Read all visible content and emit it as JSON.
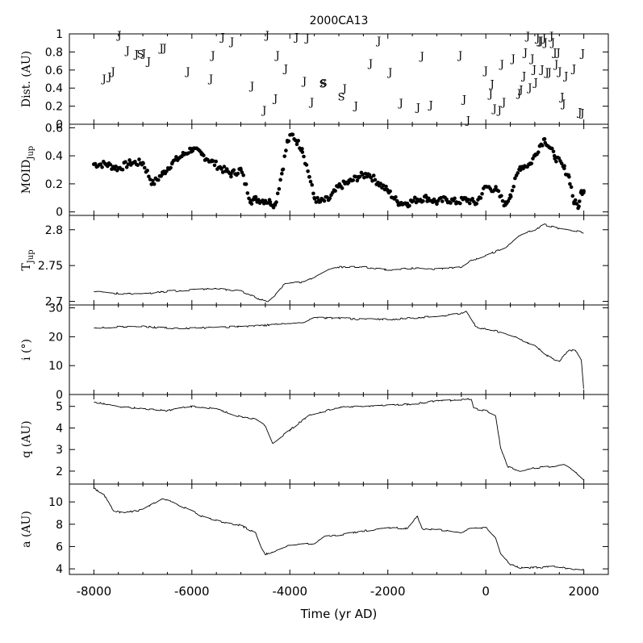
{
  "chart_data": {
    "type": "multi-panel",
    "title": "2000CA13",
    "xlabel": "Time (yr AD)",
    "xlim": [
      -8500,
      2500
    ],
    "x_ticks": [
      -8000,
      -6000,
      -4000,
      -2000,
      0,
      2000
    ],
    "x_tick_labels": [
      "-8000",
      "-6000",
      "-4000",
      "-2000",
      "0",
      "2000"
    ],
    "panels": [
      {
        "id": "dist",
        "type": "scatter",
        "ylabel_main": "Dist. (AU)",
        "ylabel_sub": "",
        "ylim": [
          0,
          1
        ],
        "y_ticks": [
          "0",
          "0.2",
          "0.4",
          "0.6",
          "0.8",
          "1"
        ],
        "marker_legend": {
          "J": "Jupiter encounter",
          "S": "Saturn encounter"
        },
        "points": [
          {
            "x": -7790,
            "y": 0.51,
            "m": "J"
          },
          {
            "x": -7680,
            "y": 0.53,
            "m": "J"
          },
          {
            "x": -7610,
            "y": 0.59,
            "m": "J"
          },
          {
            "x": -7480,
            "y": 0.99,
            "m": "J"
          },
          {
            "x": -7310,
            "y": 0.82,
            "m": "J"
          },
          {
            "x": -7130,
            "y": 0.78,
            "m": "J"
          },
          {
            "x": -7050,
            "y": 0.78,
            "m": "S"
          },
          {
            "x": -6980,
            "y": 0.79,
            "m": "J"
          },
          {
            "x": -6880,
            "y": 0.7,
            "m": "J"
          },
          {
            "x": -6620,
            "y": 0.85,
            "m": "J"
          },
          {
            "x": -6560,
            "y": 0.85,
            "m": "J"
          },
          {
            "x": -6080,
            "y": 0.59,
            "m": "J"
          },
          {
            "x": -5610,
            "y": 0.51,
            "m": "J"
          },
          {
            "x": -5570,
            "y": 0.77,
            "m": "J"
          },
          {
            "x": -5370,
            "y": 0.97,
            "m": "J"
          },
          {
            "x": -5180,
            "y": 0.92,
            "m": "J"
          },
          {
            "x": -4770,
            "y": 0.43,
            "m": "J"
          },
          {
            "x": -4520,
            "y": 0.16,
            "m": "J"
          },
          {
            "x": -4460,
            "y": 0.99,
            "m": "J"
          },
          {
            "x": -4290,
            "y": 0.29,
            "m": "J"
          },
          {
            "x": -4250,
            "y": 0.77,
            "m": "J"
          },
          {
            "x": -4080,
            "y": 0.62,
            "m": "J"
          },
          {
            "x": -3860,
            "y": 0.97,
            "m": "J"
          },
          {
            "x": -3700,
            "y": 0.48,
            "m": "J"
          },
          {
            "x": -3640,
            "y": 0.96,
            "m": "J"
          },
          {
            "x": -3550,
            "y": 0.25,
            "m": "J"
          },
          {
            "x": -3330,
            "y": 0.45,
            "m": "S"
          },
          {
            "x": -3310,
            "y": 0.46,
            "m": "S"
          },
          {
            "x": -2950,
            "y": 0.31,
            "m": "S"
          },
          {
            "x": -2880,
            "y": 0.4,
            "m": "J"
          },
          {
            "x": -2650,
            "y": 0.21,
            "m": "J"
          },
          {
            "x": -2350,
            "y": 0.68,
            "m": "J"
          },
          {
            "x": -2180,
            "y": 0.93,
            "m": "J"
          },
          {
            "x": -1950,
            "y": 0.58,
            "m": "J"
          },
          {
            "x": -1730,
            "y": 0.24,
            "m": "J"
          },
          {
            "x": -1380,
            "y": 0.19,
            "m": "J"
          },
          {
            "x": -1300,
            "y": 0.76,
            "m": "J"
          },
          {
            "x": -1120,
            "y": 0.22,
            "m": "J"
          },
          {
            "x": -520,
            "y": 0.77,
            "m": "J"
          },
          {
            "x": -440,
            "y": 0.28,
            "m": "J"
          },
          {
            "x": -360,
            "y": 0.05,
            "m": "J"
          },
          {
            "x": 0,
            "y": 0.6,
            "m": "J"
          },
          {
            "x": 100,
            "y": 0.34,
            "m": "J"
          },
          {
            "x": 130,
            "y": 0.45,
            "m": "J"
          },
          {
            "x": 180,
            "y": 0.18,
            "m": "J"
          },
          {
            "x": 280,
            "y": 0.16,
            "m": "J"
          },
          {
            "x": 330,
            "y": 0.67,
            "m": "J"
          },
          {
            "x": 370,
            "y": 0.25,
            "m": "J"
          },
          {
            "x": 560,
            "y": 0.73,
            "m": "J"
          },
          {
            "x": 680,
            "y": 0.35,
            "m": "J"
          },
          {
            "x": 720,
            "y": 0.39,
            "m": "J"
          },
          {
            "x": 780,
            "y": 0.54,
            "m": "J"
          },
          {
            "x": 810,
            "y": 0.8,
            "m": "J"
          },
          {
            "x": 860,
            "y": 0.98,
            "m": "J"
          },
          {
            "x": 900,
            "y": 0.41,
            "m": "J"
          },
          {
            "x": 950,
            "y": 0.73,
            "m": "J"
          },
          {
            "x": 990,
            "y": 0.61,
            "m": "J"
          },
          {
            "x": 1020,
            "y": 0.47,
            "m": "J"
          },
          {
            "x": 1060,
            "y": 0.96,
            "m": "J"
          },
          {
            "x": 1100,
            "y": 0.93,
            "m": "J"
          },
          {
            "x": 1130,
            "y": 0.93,
            "m": "J"
          },
          {
            "x": 1150,
            "y": 0.61,
            "m": "J"
          },
          {
            "x": 1190,
            "y": 0.96,
            "m": "J"
          },
          {
            "x": 1220,
            "y": 0.91,
            "m": "J"
          },
          {
            "x": 1250,
            "y": 0.58,
            "m": "J"
          },
          {
            "x": 1300,
            "y": 0.58,
            "m": "J"
          },
          {
            "x": 1340,
            "y": 0.98,
            "m": "J"
          },
          {
            "x": 1370,
            "y": 0.91,
            "m": "J"
          },
          {
            "x": 1410,
            "y": 0.8,
            "m": "J"
          },
          {
            "x": 1440,
            "y": 0.67,
            "m": "J"
          },
          {
            "x": 1480,
            "y": 0.8,
            "m": "J"
          },
          {
            "x": 1510,
            "y": 0.59,
            "m": "J"
          },
          {
            "x": 1560,
            "y": 0.31,
            "m": "J"
          },
          {
            "x": 1590,
            "y": 0.23,
            "m": "J"
          },
          {
            "x": 1640,
            "y": 0.54,
            "m": "J"
          },
          {
            "x": 1800,
            "y": 0.62,
            "m": "J"
          },
          {
            "x": 1920,
            "y": 0.14,
            "m": "J"
          },
          {
            "x": 1970,
            "y": 0.13,
            "m": "J"
          },
          {
            "x": 1980,
            "y": 0.79,
            "m": "J"
          }
        ]
      },
      {
        "id": "moid",
        "type": "scatter",
        "ylabel_main": "MOID",
        "ylabel_sub": "Jup",
        "ylim": [
          -0.025,
          0.625
        ],
        "y_ticks": [
          "0",
          "0.2",
          "0.4",
          "0.6"
        ],
        "x": [
          -8000,
          -7750,
          -7500,
          -7250,
          -7000,
          -6800,
          -6600,
          -6400,
          -6200,
          -6000,
          -5800,
          -5600,
          -5400,
          -5200,
          -5000,
          -4800,
          -4700,
          -4500,
          -4400,
          -4300,
          -4150,
          -4050,
          -3950,
          -3850,
          -3750,
          -3600,
          -3500,
          -3400,
          -3200,
          -3000,
          -2800,
          -2600,
          -2400,
          -2200,
          -2000,
          -1800,
          -1600,
          -1400,
          -1200,
          -1000,
          -800,
          -600,
          -400,
          -200,
          0,
          200,
          400,
          500,
          700,
          900,
          1000,
          1100,
          1200,
          1300,
          1400,
          1600,
          1700,
          1800,
          1900,
          1950,
          2000
        ],
        "values": [
          0.34,
          0.34,
          0.31,
          0.35,
          0.35,
          0.2,
          0.27,
          0.35,
          0.4,
          0.45,
          0.41,
          0.36,
          0.31,
          0.27,
          0.3,
          0.08,
          0.09,
          0.08,
          0.07,
          0.05,
          0.3,
          0.5,
          0.55,
          0.5,
          0.45,
          0.25,
          0.1,
          0.07,
          0.09,
          0.18,
          0.21,
          0.25,
          0.27,
          0.21,
          0.15,
          0.07,
          0.06,
          0.09,
          0.1,
          0.07,
          0.09,
          0.07,
          0.09,
          0.06,
          0.18,
          0.16,
          0.05,
          0.12,
          0.32,
          0.34,
          0.4,
          0.47,
          0.52,
          0.46,
          0.4,
          0.31,
          0.25,
          0.07,
          0.04,
          0.15,
          0.15
        ]
      },
      {
        "id": "tjup",
        "type": "line",
        "ylabel_main": "T",
        "ylabel_sub": "Jup",
        "ylim": [
          2.695,
          2.82
        ],
        "y_ticks": [
          "2.7",
          "2.75",
          "2.8"
        ],
        "x": [
          -8000,
          -7500,
          -7000,
          -6500,
          -6000,
          -5500,
          -5000,
          -4600,
          -4450,
          -4300,
          -4100,
          -3700,
          -3200,
          -3000,
          -2500,
          -2000,
          -1500,
          -1000,
          -500,
          -300,
          0,
          400,
          700,
          1000,
          1200,
          1500,
          2000
        ],
        "values": [
          2.714,
          2.711,
          2.71,
          2.714,
          2.716,
          2.718,
          2.714,
          2.703,
          2.7,
          2.709,
          2.725,
          2.727,
          2.745,
          2.748,
          2.748,
          2.744,
          2.746,
          2.745,
          2.748,
          2.757,
          2.764,
          2.775,
          2.792,
          2.8,
          2.807,
          2.802,
          2.796
        ]
      },
      {
        "id": "incl",
        "type": "line",
        "ylabel_main": "i (°)",
        "ylabel_sub": "",
        "ylim": [
          0,
          31
        ],
        "y_ticks": [
          "0",
          "10",
          "20",
          "30"
        ],
        "x": [
          -8000,
          -7500,
          -7000,
          -6500,
          -6000,
          -5500,
          -5000,
          -4500,
          -4000,
          -3700,
          -3500,
          -3000,
          -2500,
          -2000,
          -1500,
          -1000,
          -500,
          -400,
          -200,
          0,
          200,
          400,
          600,
          800,
          1000,
          1200,
          1400,
          1500,
          1700,
          1850,
          1950,
          2000
        ],
        "values": [
          23,
          23.5,
          23.5,
          23,
          23,
          23.3,
          23.5,
          24,
          24.5,
          25,
          26.5,
          26.5,
          26,
          26,
          26.5,
          27,
          28,
          29,
          23.5,
          22.5,
          22,
          21,
          20,
          18,
          17,
          14,
          12,
          11.5,
          15.5,
          15,
          12,
          1
        ]
      },
      {
        "id": "q",
        "type": "line",
        "ylabel_main": "q (AU)",
        "ylabel_sub": "",
        "ylim": [
          1.4,
          5.55
        ],
        "y_ticks": [
          "2",
          "3",
          "4",
          "5"
        ],
        "x": [
          -8000,
          -7500,
          -7000,
          -6500,
          -6000,
          -5500,
          -5000,
          -4700,
          -4500,
          -4350,
          -4000,
          -3600,
          -3000,
          -2500,
          -2000,
          -1500,
          -1000,
          -500,
          -300,
          -250,
          0,
          200,
          300,
          450,
          700,
          1000,
          1300,
          1600,
          1800,
          1950,
          2000
        ],
        "values": [
          5.2,
          5.0,
          4.9,
          4.8,
          5.0,
          4.9,
          4.5,
          4.4,
          4.1,
          3.3,
          3.9,
          4.6,
          4.95,
          5.0,
          5.05,
          5.1,
          5.25,
          5.3,
          5.35,
          4.9,
          4.8,
          4.6,
          3.1,
          2.2,
          2.0,
          2.15,
          2.2,
          2.3,
          2.0,
          1.7,
          1.6
        ]
      },
      {
        "id": "a",
        "type": "line",
        "ylabel_main": "a (AU)",
        "ylabel_sub": "",
        "ylim": [
          3.5,
          11.6
        ],
        "y_ticks": [
          "4",
          "6",
          "8",
          "10"
        ],
        "x": [
          -8000,
          -7800,
          -7600,
          -7400,
          -7000,
          -6600,
          -6400,
          -6000,
          -5800,
          -5400,
          -5000,
          -4700,
          -4600,
          -4500,
          -4300,
          -4000,
          -3500,
          -3300,
          -3000,
          -2500,
          -2000,
          -1600,
          -1400,
          -1300,
          -1000,
          -500,
          -300,
          0,
          200,
          300,
          500,
          700,
          1000,
          1400,
          1800,
          2000
        ],
        "values": [
          11.2,
          10.7,
          9.2,
          9.0,
          9.3,
          10.3,
          10.0,
          9.2,
          8.7,
          8.2,
          7.9,
          7.2,
          6.0,
          5.3,
          5.6,
          6.1,
          6.3,
          6.9,
          7.0,
          7.4,
          7.7,
          7.6,
          8.8,
          7.6,
          7.5,
          7.3,
          7.6,
          7.7,
          6.8,
          5.4,
          4.4,
          4.1,
          4.1,
          4.2,
          4.0,
          3.9
        ]
      }
    ]
  }
}
